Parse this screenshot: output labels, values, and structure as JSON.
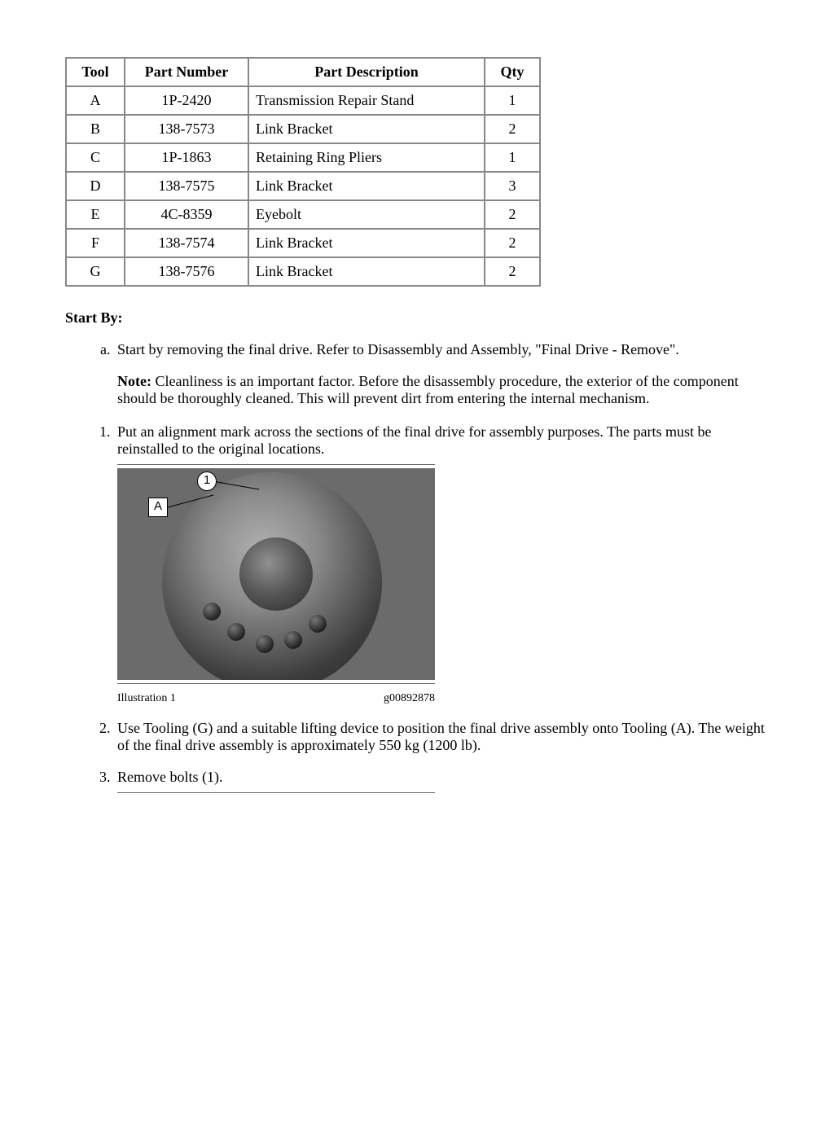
{
  "table": {
    "headers": [
      "Tool",
      "Part Number",
      "Part Description",
      "Qty"
    ],
    "rows": [
      {
        "tool": "A",
        "pn": "1P-2420",
        "desc": "Transmission Repair Stand",
        "qty": "1"
      },
      {
        "tool": "B",
        "pn": "138-7573",
        "desc": "Link Bracket",
        "qty": "2"
      },
      {
        "tool": "C",
        "pn": "1P-1863",
        "desc": "Retaining Ring Pliers",
        "qty": "1"
      },
      {
        "tool": "D",
        "pn": "138-7575",
        "desc": "Link Bracket",
        "qty": "3"
      },
      {
        "tool": "E",
        "pn": "4C-8359",
        "desc": "Eyebolt",
        "qty": "2"
      },
      {
        "tool": "F",
        "pn": "138-7574",
        "desc": "Link Bracket",
        "qty": "2"
      },
      {
        "tool": "G",
        "pn": "138-7576",
        "desc": "Link Bracket",
        "qty": "2"
      }
    ],
    "col_widths": [
      "50px",
      "130px",
      "240px",
      "46px"
    ]
  },
  "start_by_label": "Start By:",
  "item_a": "Start by removing the final drive. Refer to Disassembly and Assembly, \"Final Drive - Remove\".",
  "note_label": "Note:",
  "note_text": " Cleanliness is an important factor. Before the disassembly procedure, the exterior of the component should be thoroughly cleaned. This will prevent dirt from entering the internal mechanism.",
  "step1": "Put an alignment mark across the sections of the final drive for assembly purposes. The parts must be reinstalled to the original locations.",
  "step2": "Use Tooling (G) and a suitable lifting device to position the final drive assembly onto Tooling (A). The weight of the final drive assembly is approximately 550 kg (1200 lb).",
  "step3": "Remove bolts (1).",
  "callout1": "1",
  "calloutA": "A",
  "illus_label": "Illustration 1",
  "illus_code": "g00892878"
}
